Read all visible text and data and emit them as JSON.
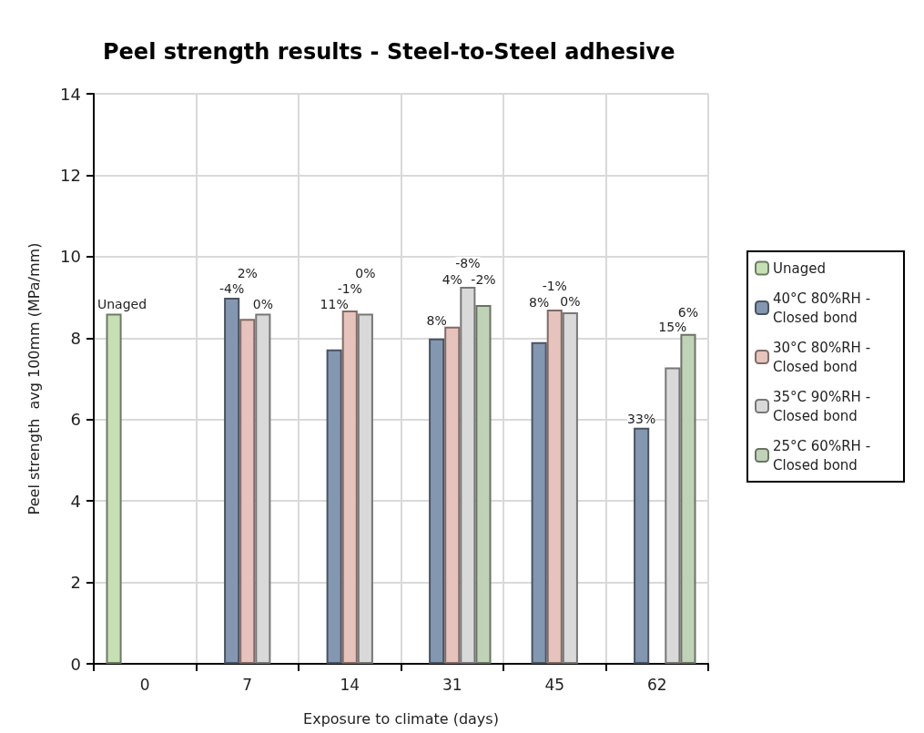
{
  "chart_data": {
    "type": "bar",
    "title": "Peel strength results - Steel-to-Steel adhesive",
    "xlabel": "Exposure to climate (days)",
    "ylabel": "Peel strength  avg 100mm (MPa/mm)",
    "categories": [
      "0",
      "7",
      "14",
      "31",
      "45",
      "62"
    ],
    "series": [
      {
        "name": "Unaged",
        "color": "#c6e0b4",
        "values": [
          8.6,
          null,
          null,
          null,
          null,
          null
        ]
      },
      {
        "name": "40°C 80%RH - Closed bond",
        "color": "#8497b0",
        "values": [
          null,
          8.99,
          7.72,
          7.99,
          7.9,
          5.8
        ]
      },
      {
        "name": "30°C 80%RH - Closed bond",
        "color": "#e6c3bd",
        "values": [
          null,
          8.47,
          8.68,
          8.28,
          8.7,
          null
        ]
      },
      {
        "name": "35°C 90%RH - Closed bond",
        "color": "#d9d9d9",
        "values": [
          null,
          8.6,
          8.6,
          9.26,
          8.63,
          7.28
        ]
      },
      {
        "name": "25°C 60%RH - Closed bond",
        "color": "#c0d3b8",
        "values": [
          null,
          null,
          null,
          8.81,
          null,
          8.1
        ]
      }
    ],
    "annotations": [
      "Unaged",
      "-4%",
      "2%",
      "0%",
      "11%",
      "-1%",
      "0%",
      "8%",
      "4%",
      "-8%",
      "-2%",
      "8%",
      "-1%",
      "0%",
      "33%",
      "15%",
      "6%"
    ],
    "ylim": [
      0,
      14
    ],
    "yticks": [
      0,
      2,
      4,
      6,
      8,
      10,
      12,
      14
    ],
    "grid": true,
    "legend": "right"
  }
}
